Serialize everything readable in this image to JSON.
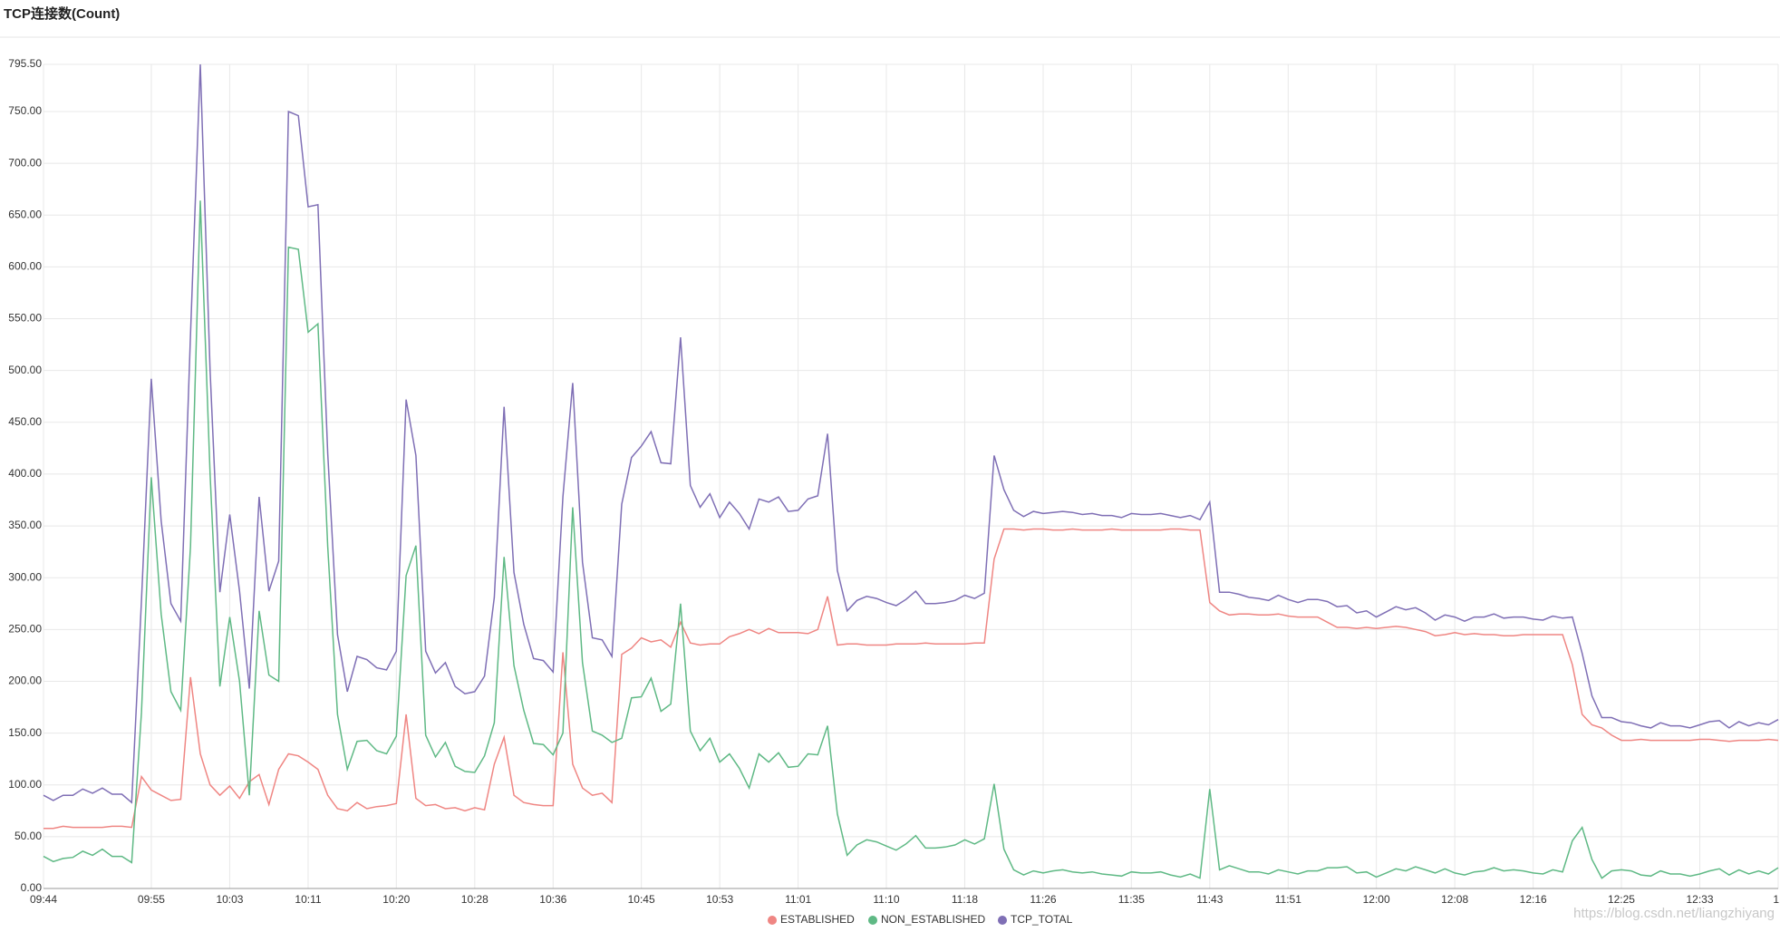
{
  "chart_data": {
    "type": "line",
    "title": "TCP连接数(Count)",
    "watermark": "https://blog.csdn.net/liangzhiyang",
    "categories": [
      "09:44",
      null,
      null,
      null,
      null,
      null,
      null,
      null,
      null,
      null,
      null,
      "09:55",
      null,
      null,
      null,
      null,
      null,
      null,
      null,
      "10:03",
      null,
      null,
      null,
      null,
      null,
      null,
      null,
      "10:11",
      null,
      null,
      null,
      null,
      null,
      null,
      null,
      null,
      "10:20",
      null,
      null,
      null,
      null,
      null,
      null,
      null,
      "10:28",
      null,
      null,
      null,
      null,
      null,
      null,
      null,
      "10:36",
      null,
      null,
      null,
      null,
      null,
      null,
      null,
      null,
      "10:45",
      null,
      null,
      null,
      null,
      null,
      null,
      null,
      "10:53",
      null,
      null,
      null,
      null,
      null,
      null,
      null,
      "11:01",
      null,
      null,
      null,
      null,
      null,
      null,
      null,
      null,
      "11:10",
      null,
      null,
      null,
      null,
      null,
      null,
      null,
      "11:18",
      null,
      null,
      null,
      null,
      null,
      null,
      null,
      "11:26",
      null,
      null,
      null,
      null,
      null,
      null,
      null,
      null,
      "11:35",
      null,
      null,
      null,
      null,
      null,
      null,
      null,
      "11:43",
      null,
      null,
      null,
      null,
      null,
      null,
      null,
      "11:51",
      null,
      null,
      null,
      null,
      null,
      null,
      null,
      null,
      "12:00",
      null,
      null,
      null,
      null,
      null,
      null,
      null,
      "12:08",
      null,
      null,
      null,
      null,
      null,
      null,
      null,
      "12:16",
      null,
      null,
      null,
      null,
      null,
      null,
      null,
      null,
      "12:25",
      null,
      null,
      null,
      null,
      null,
      null,
      null,
      "12:33",
      null,
      null,
      null,
      null,
      null,
      null,
      null,
      "1"
    ],
    "series": [
      {
        "name": "ESTABLISHED",
        "color": "#ef8683",
        "values": [
          58,
          58,
          60,
          59,
          59,
          59,
          59,
          60,
          60,
          59,
          108,
          95,
          90,
          85,
          86,
          204,
          130,
          100,
          90,
          99,
          87,
          103,
          110,
          81,
          115,
          130,
          128,
          122,
          115,
          90,
          77,
          75,
          83,
          77,
          79,
          80,
          82,
          168,
          87,
          80,
          81,
          77,
          78,
          75,
          78,
          76,
          120,
          146,
          90,
          83,
          81,
          80,
          80,
          228,
          120,
          97,
          90,
          92,
          83,
          226,
          232,
          242,
          238,
          240,
          233,
          257,
          237,
          235,
          236,
          236,
          243,
          246,
          250,
          246,
          251,
          247,
          247,
          247,
          246,
          250,
          282,
          235,
          236,
          236,
          235,
          235,
          235,
          236,
          236,
          236,
          237,
          236,
          236,
          236,
          236,
          237,
          237,
          318,
          347,
          347,
          346,
          347,
          347,
          346,
          346,
          347,
          346,
          346,
          346,
          347,
          346,
          346,
          346,
          346,
          346,
          347,
          347,
          346,
          346,
          276,
          268,
          264,
          265,
          265,
          264,
          264,
          265,
          263,
          262,
          262,
          262,
          257,
          252,
          252,
          251,
          252,
          251,
          252,
          253,
          252,
          250,
          248,
          244,
          245,
          247,
          245,
          246,
          245,
          245,
          244,
          244,
          245,
          245,
          245,
          245,
          245,
          216,
          168,
          158,
          155,
          148,
          143,
          143,
          144,
          143,
          143,
          143,
          143,
          143,
          144,
          144,
          143,
          142,
          143,
          143,
          143,
          144,
          143
        ]
      },
      {
        "name": "NON_ESTABLISHED",
        "color": "#5fb985",
        "values": [
          31,
          26,
          29,
          30,
          36,
          32,
          38,
          31,
          31,
          25,
          170,
          397,
          265,
          190,
          172,
          330,
          664,
          400,
          195,
          262,
          200,
          90,
          268,
          206,
          200,
          619,
          617,
          537,
          545,
          330,
          168,
          115,
          142,
          143,
          133,
          130,
          147,
          302,
          331,
          148,
          127,
          141,
          118,
          113,
          112,
          128,
          160,
          320,
          215,
          172,
          140,
          139,
          129,
          150,
          368,
          218,
          152,
          148,
          141,
          145,
          184,
          185,
          203,
          171,
          178,
          275,
          152,
          133,
          145,
          122,
          130,
          116,
          97,
          130,
          122,
          131,
          117,
          118,
          130,
          129,
          157,
          72,
          32,
          42,
          47,
          45,
          41,
          37,
          43,
          51,
          39,
          39,
          40,
          42,
          47,
          43,
          48,
          101,
          38,
          18,
          13,
          17,
          15,
          17,
          18,
          16,
          15,
          16,
          14,
          13,
          12,
          16,
          15,
          15,
          16,
          13,
          11,
          14,
          10,
          96,
          18,
          22,
          19,
          16,
          16,
          14,
          18,
          16,
          14,
          17,
          17,
          20,
          20,
          21,
          15,
          16,
          11,
          15,
          19,
          17,
          21,
          18,
          15,
          19,
          15,
          13,
          16,
          17,
          20,
          17,
          18,
          17,
          15,
          14,
          18,
          16,
          46,
          59,
          28,
          10,
          17,
          18,
          17,
          13,
          12,
          17,
          14,
          14,
          12,
          14,
          17,
          19,
          13,
          18,
          14,
          17,
          14,
          20
        ]
      },
      {
        "name": "TCP_TOTAL",
        "color": "#7f6fb5",
        "values": [
          90,
          85,
          90,
          90,
          96,
          92,
          97,
          91,
          91,
          83,
          278,
          492,
          355,
          275,
          258,
          535,
          795.5,
          500,
          286,
          361,
          287,
          193,
          378,
          287,
          316,
          750,
          746,
          658,
          660,
          420,
          245,
          190,
          224,
          221,
          213,
          211,
          229,
          472,
          418,
          229,
          208,
          218,
          195,
          188,
          190,
          205,
          281,
          465,
          305,
          255,
          222,
          220,
          209,
          378,
          488,
          315,
          242,
          240,
          224,
          371,
          416,
          427,
          441,
          411,
          410,
          532,
          389,
          368,
          381,
          358,
          373,
          362,
          347,
          376,
          373,
          378,
          364,
          365,
          376,
          379,
          439,
          307,
          268,
          278,
          282,
          280,
          276,
          273,
          279,
          287,
          275,
          275,
          276,
          278,
          283,
          280,
          285,
          418,
          385,
          365,
          359,
          364,
          362,
          363,
          364,
          363,
          361,
          362,
          360,
          360,
          358,
          362,
          361,
          361,
          362,
          360,
          358,
          360,
          356,
          373,
          286,
          286,
          284,
          281,
          280,
          278,
          283,
          279,
          276,
          279,
          279,
          277,
          272,
          273,
          266,
          268,
          262,
          267,
          272,
          269,
          271,
          266,
          259,
          264,
          262,
          258,
          262,
          262,
          265,
          261,
          262,
          262,
          260,
          259,
          263,
          261,
          262,
          227,
          186,
          165,
          165,
          161,
          160,
          157,
          155,
          160,
          157,
          157,
          155,
          158,
          161,
          162,
          155,
          161,
          157,
          160,
          158,
          163
        ]
      }
    ],
    "ylim": [
      0,
      795.5
    ],
    "yticks": [
      {
        "value": 0,
        "label": "0.00"
      },
      {
        "value": 50,
        "label": "50.00"
      },
      {
        "value": 100,
        "label": "100.00"
      },
      {
        "value": 150,
        "label": "150.00"
      },
      {
        "value": 200,
        "label": "200.00"
      },
      {
        "value": 250,
        "label": "250.00"
      },
      {
        "value": 300,
        "label": "300.00"
      },
      {
        "value": 350,
        "label": "350.00"
      },
      {
        "value": 400,
        "label": "400.00"
      },
      {
        "value": 450,
        "label": "450.00"
      },
      {
        "value": 500,
        "label": "500.00"
      },
      {
        "value": 550,
        "label": "550.00"
      },
      {
        "value": 600,
        "label": "600.00"
      },
      {
        "value": 650,
        "label": "650.00"
      },
      {
        "value": 700,
        "label": "700.00"
      },
      {
        "value": 750,
        "label": "750.00"
      },
      {
        "value": 795.5,
        "label": "795.50"
      }
    ],
    "grid": true,
    "legend": "bottom"
  }
}
